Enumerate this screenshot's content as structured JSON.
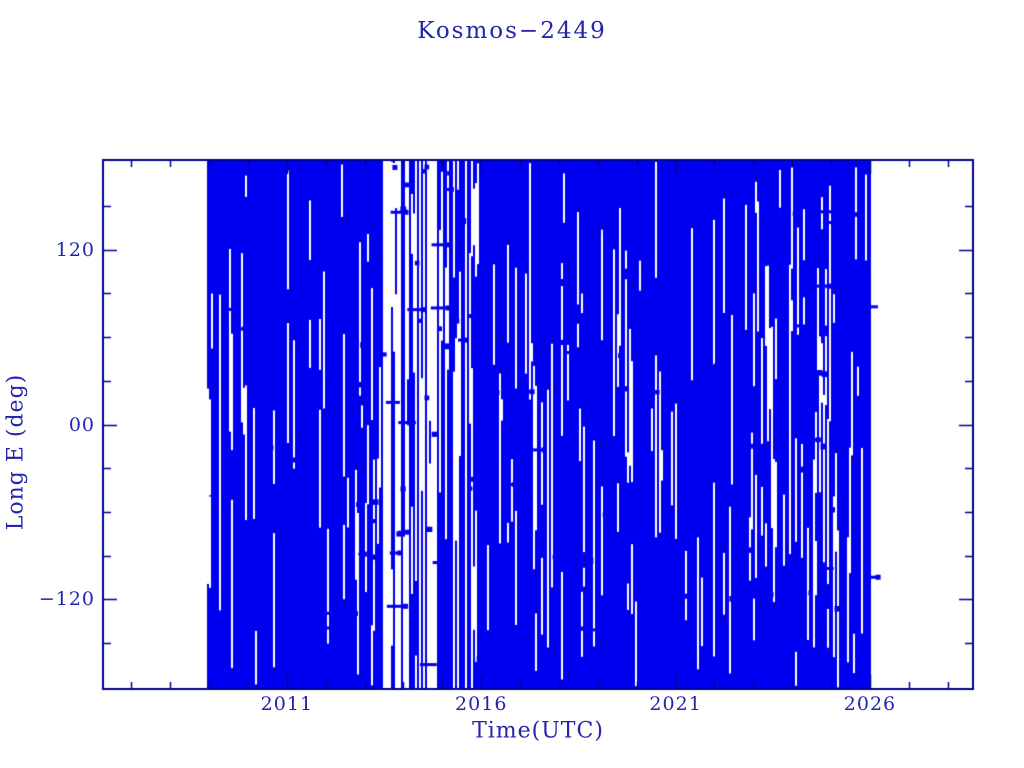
{
  "page": {
    "background": "#ffffff"
  },
  "colors": {
    "text": "#2424ad",
    "frame": "#000090",
    "data": "#0000f0",
    "background": "#ffffff"
  },
  "chart_data": {
    "type": "scatter",
    "title": "Kosmos−2449",
    "xlabel": "Time(UTC)",
    "ylabel": "Long E (deg)",
    "xlim": [
      2006.27,
      2028.65
    ],
    "ylim": [
      -181.5,
      181.5
    ],
    "grid": false,
    "legend": null,
    "x_ticks": {
      "major": [
        2011,
        2016,
        2021,
        2026
      ],
      "major_labels": [
        "2011",
        "2016",
        "2021",
        "2026"
      ],
      "minor_start": 2007,
      "minor_end": 2028,
      "minor_step": 1
    },
    "y_ticks": {
      "major": [
        -120,
        0,
        120
      ],
      "major_labels": [
        "−120",
        "00",
        "120"
      ],
      "minor_start": -150,
      "minor_end": 150,
      "minor_step": 30
    },
    "series": [
      {
        "name": "ground-track-longitude",
        "style": "dense-vertical-traces-with-square-markers",
        "data_start": 2008.95,
        "data_end": 2025.97,
        "y_coverage": [
          -180,
          180
        ],
        "density_profile": [
          [
            2008.95,
            0.78
          ],
          [
            2009.5,
            0.84
          ],
          [
            2010.3,
            0.88
          ],
          [
            2011.0,
            0.84
          ],
          [
            2011.8,
            0.88
          ],
          [
            2012.6,
            0.82
          ],
          [
            2013.3,
            0.62
          ],
          [
            2013.9,
            0.46
          ],
          [
            2014.7,
            0.38
          ],
          [
            2015.3,
            0.44
          ],
          [
            2015.7,
            0.55
          ],
          [
            2016.0,
            0.88
          ],
          [
            2016.8,
            0.86
          ],
          [
            2017.5,
            0.84
          ],
          [
            2018.2,
            0.8
          ],
          [
            2018.9,
            0.76
          ],
          [
            2019.6,
            0.8
          ],
          [
            2020.4,
            0.85
          ],
          [
            2021.2,
            0.86
          ],
          [
            2022.0,
            0.84
          ],
          [
            2022.7,
            0.78
          ],
          [
            2023.3,
            0.7
          ],
          [
            2023.9,
            0.64
          ],
          [
            2024.5,
            0.6
          ],
          [
            2025.0,
            0.66
          ],
          [
            2025.5,
            0.7
          ],
          [
            2025.97,
            0.72
          ]
        ],
        "squares": 190,
        "bars": 100,
        "seed": 24490427
      }
    ]
  }
}
